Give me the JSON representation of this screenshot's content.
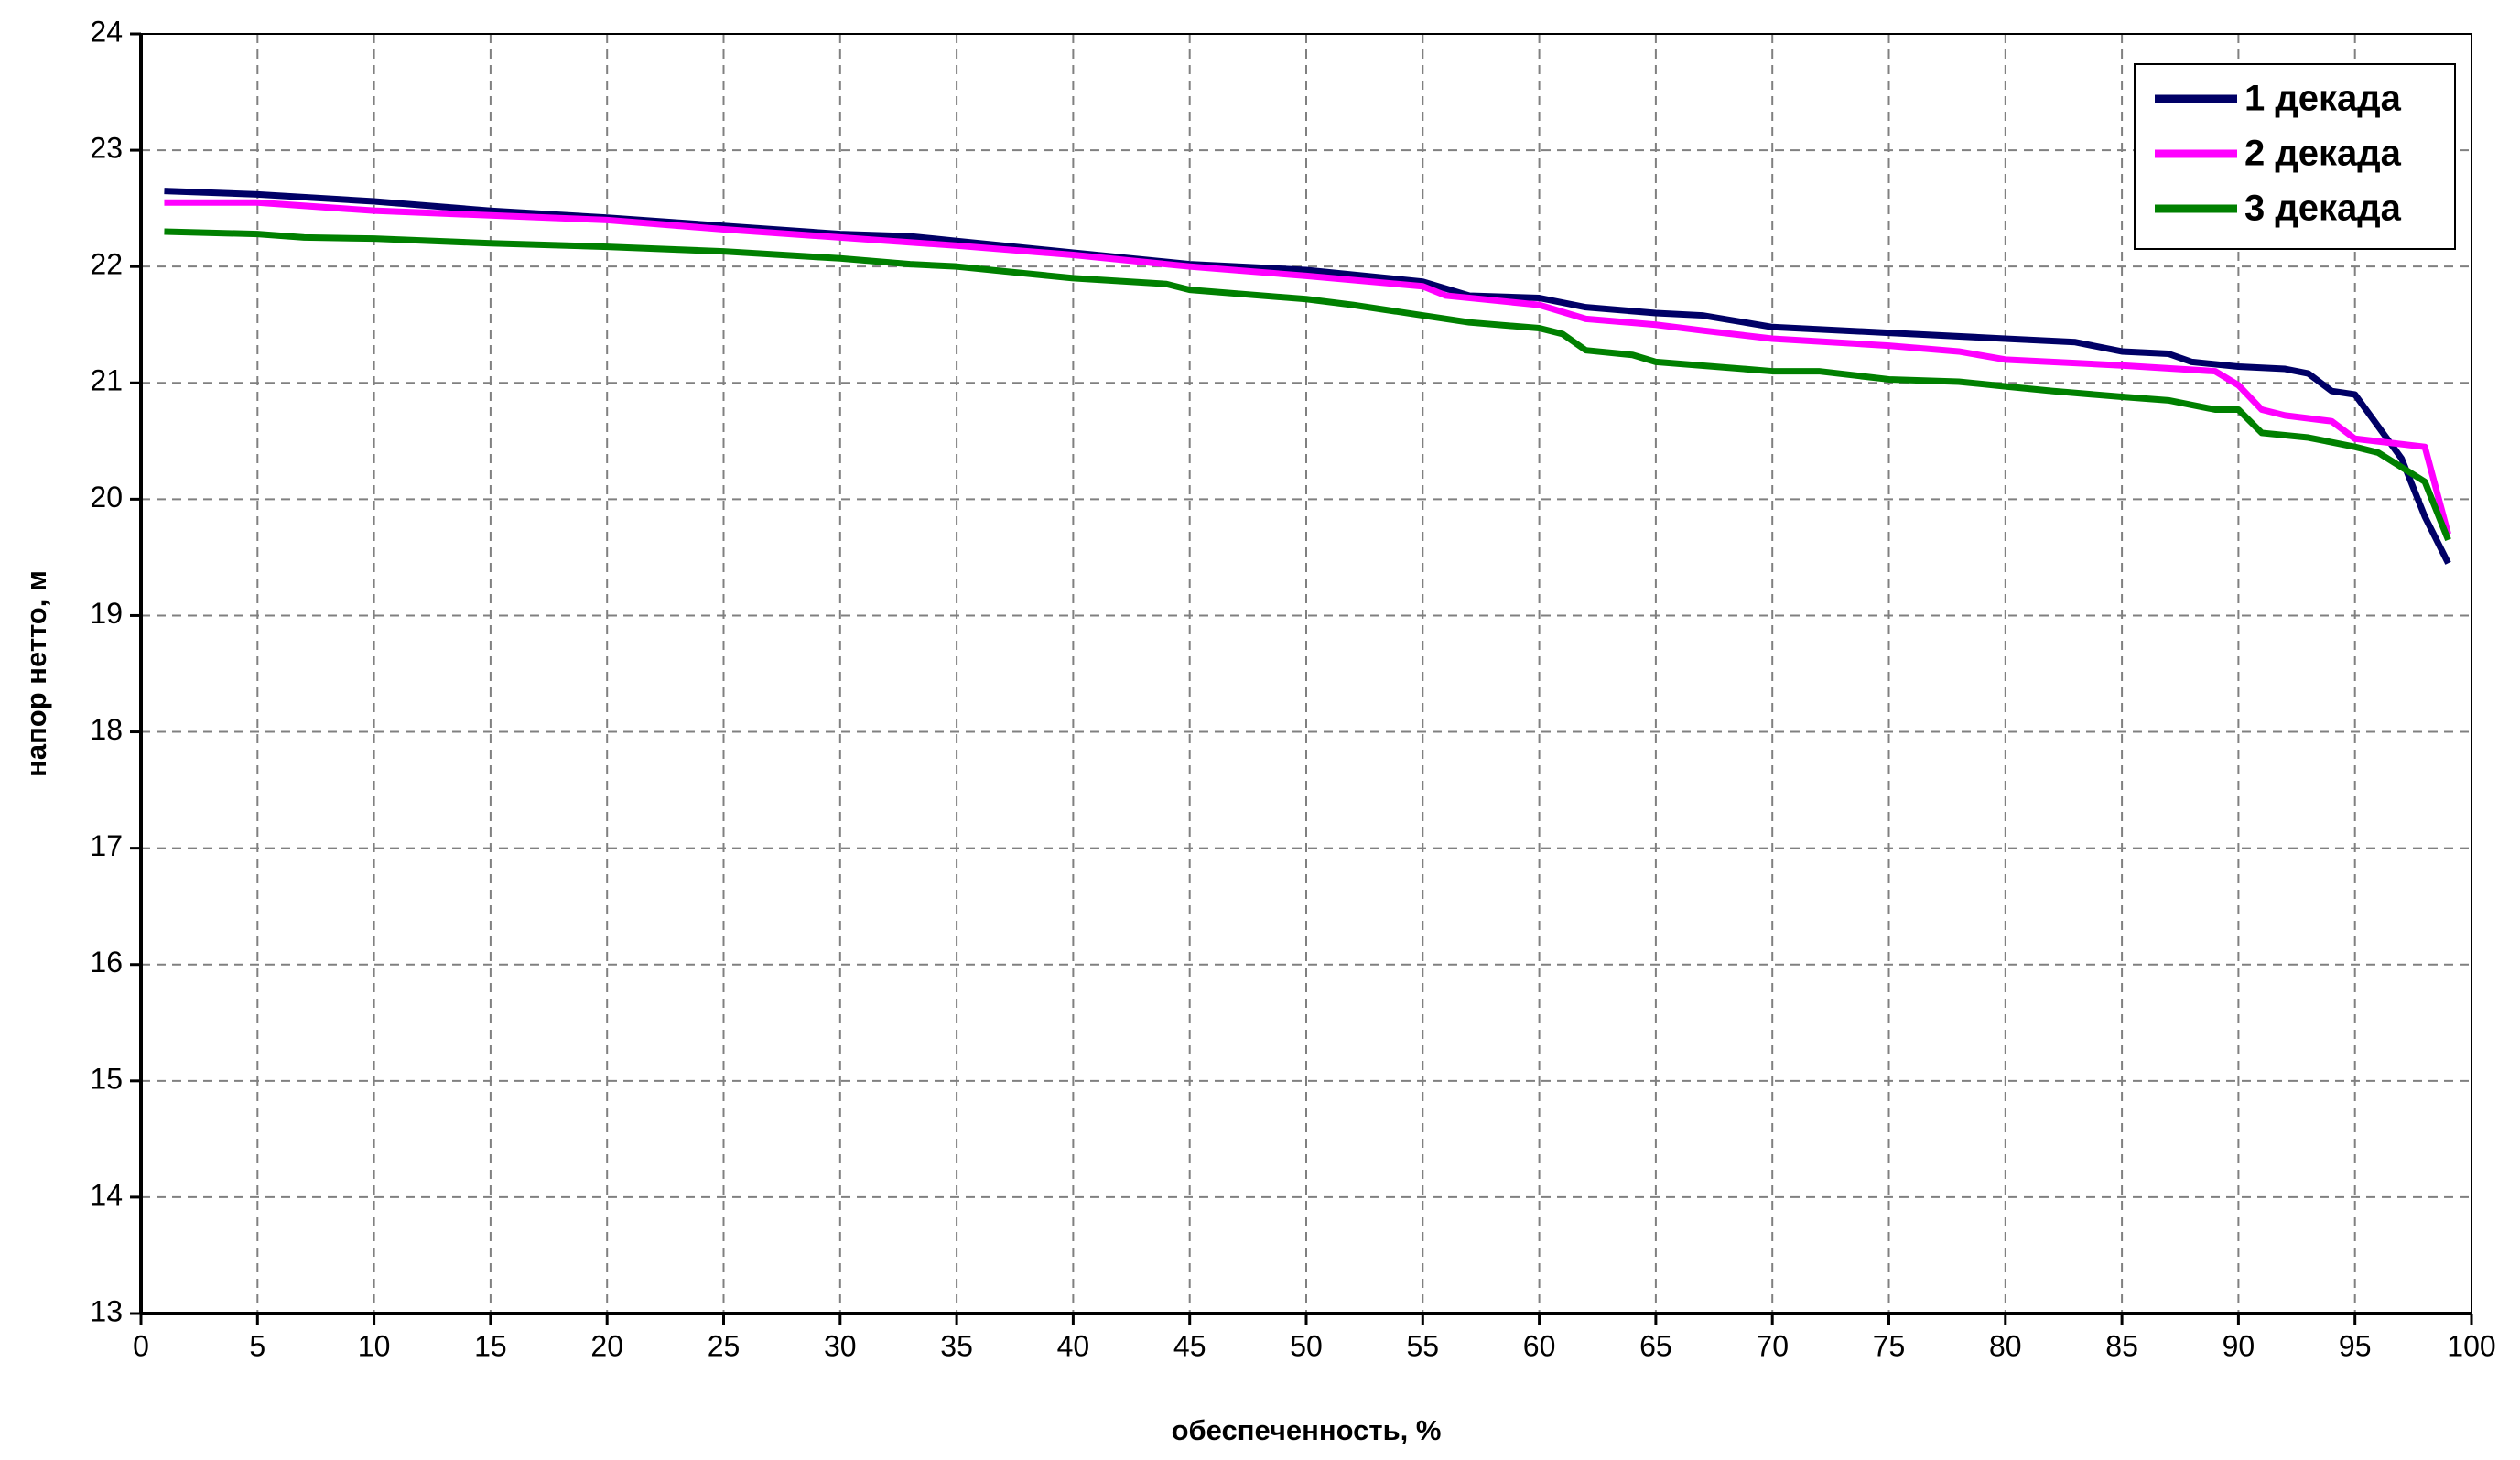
{
  "chart_data": {
    "type": "line",
    "xlabel": "обеспеченность, %",
    "ylabel": "напор нетто, м",
    "xlim": [
      0,
      100
    ],
    "ylim": [
      13,
      24
    ],
    "xticks": [
      0,
      5,
      10,
      15,
      20,
      25,
      30,
      35,
      40,
      45,
      50,
      55,
      60,
      65,
      70,
      75,
      80,
      85,
      90,
      95,
      100
    ],
    "yticks": [
      13,
      14,
      15,
      16,
      17,
      18,
      19,
      20,
      21,
      22,
      23,
      24
    ],
    "grid": true,
    "legend": "top-right",
    "series": [
      {
        "name": "1 декада",
        "color": "#000066",
        "x": [
          1,
          5,
          10,
          15,
          20,
          25,
          30,
          33,
          35,
          40,
          45,
          50,
          55,
          57,
          60,
          62,
          65,
          67,
          70,
          75,
          80,
          83,
          85,
          87,
          88,
          90,
          92,
          93,
          94,
          95,
          97,
          98,
          99
        ],
        "values": [
          22.65,
          22.62,
          22.56,
          22.48,
          22.42,
          22.35,
          22.28,
          22.26,
          22.22,
          22.12,
          22.02,
          21.97,
          21.87,
          21.75,
          21.73,
          21.65,
          21.6,
          21.58,
          21.48,
          21.43,
          21.38,
          21.35,
          21.27,
          21.25,
          21.18,
          21.14,
          21.12,
          21.08,
          20.93,
          20.9,
          20.35,
          19.85,
          19.45
        ]
      },
      {
        "name": "2 декада",
        "color": "#ff00ff",
        "x": [
          1,
          5,
          10,
          15,
          20,
          25,
          30,
          35,
          40,
          45,
          50,
          55,
          56,
          60,
          62,
          65,
          67,
          70,
          75,
          78,
          80,
          85,
          89,
          90,
          91,
          92,
          94,
          95,
          98,
          99
        ],
        "values": [
          22.55,
          22.55,
          22.48,
          22.44,
          22.4,
          22.32,
          22.25,
          22.18,
          22.1,
          22.0,
          21.92,
          21.83,
          21.75,
          21.67,
          21.55,
          21.5,
          21.45,
          21.38,
          21.32,
          21.27,
          21.2,
          21.15,
          21.1,
          20.98,
          20.77,
          20.72,
          20.67,
          20.52,
          20.45,
          19.7
        ]
      },
      {
        "name": "3 декада",
        "color": "#008000",
        "x": [
          1,
          5,
          7,
          10,
          15,
          20,
          25,
          30,
          33,
          35,
          40,
          44,
          45,
          50,
          52,
          55,
          57,
          60,
          61,
          62,
          64,
          65,
          70,
          72,
          75,
          78,
          80,
          82,
          85,
          87,
          89,
          90,
          91,
          93,
          95,
          96,
          98,
          99
        ],
        "values": [
          22.3,
          22.28,
          22.25,
          22.24,
          22.2,
          22.17,
          22.13,
          22.07,
          22.02,
          22.0,
          21.9,
          21.85,
          21.8,
          21.72,
          21.67,
          21.58,
          21.52,
          21.47,
          21.42,
          21.28,
          21.24,
          21.18,
          21.1,
          21.1,
          21.03,
          21.01,
          20.97,
          20.93,
          20.88,
          20.85,
          20.77,
          20.77,
          20.57,
          20.53,
          20.45,
          20.4,
          20.15,
          19.65
        ]
      }
    ]
  }
}
